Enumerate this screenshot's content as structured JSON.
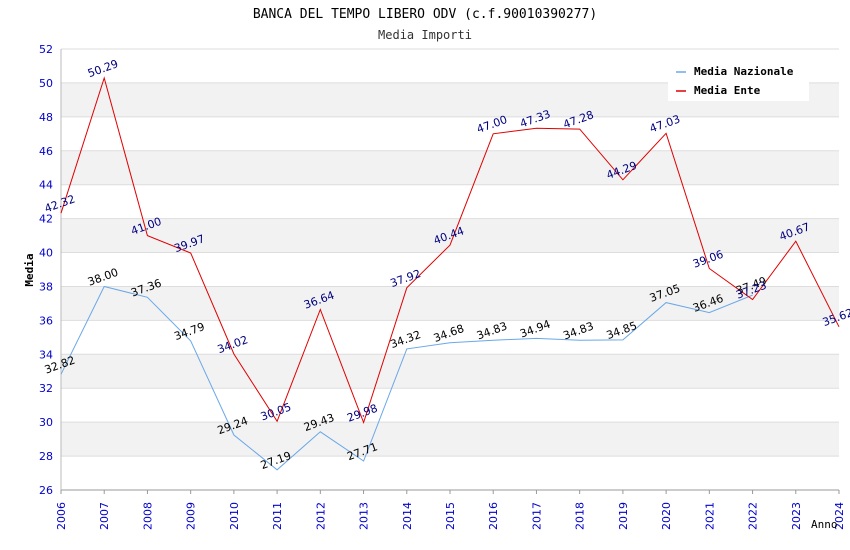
{
  "chart_data": {
    "type": "line",
    "title": "BANCA DEL TEMPO LIBERO ODV (c.f.90010390277)",
    "subtitle": "Media Importi",
    "xlabel": "Anno",
    "ylabel": "Media",
    "ylim": [
      26,
      52
    ],
    "ytick_step": 2,
    "grid": true,
    "legend_position": "top-right",
    "x": [
      "2006",
      "2007",
      "2008",
      "2009",
      "2010",
      "2011",
      "2012",
      "2013",
      "2014",
      "2015",
      "2016",
      "2017",
      "2018",
      "2019",
      "2020",
      "2021",
      "2022",
      "2023",
      "2024"
    ],
    "series": [
      {
        "name": "Media Nazionale",
        "color": "#6aa8e8",
        "label_color": "#000000",
        "values": [
          32.82,
          38.0,
          37.36,
          34.79,
          29.24,
          27.19,
          29.43,
          27.71,
          34.32,
          34.68,
          34.83,
          34.94,
          34.83,
          34.85,
          37.05,
          36.46,
          37.49,
          null,
          null
        ],
        "labels": [
          "32.82",
          "38.00",
          "37.36",
          "34.79",
          "29.24",
          "27.19",
          "29.43",
          "27.71",
          "34.32",
          "34.68",
          "34.83",
          "34.94",
          "34.83",
          "34.85",
          "37.05",
          "36.46",
          "37.49",
          null,
          null
        ]
      },
      {
        "name": "Media Ente",
        "color": "#e00000",
        "label_color": "#000080",
        "values": [
          42.32,
          50.29,
          41.0,
          39.97,
          34.02,
          30.05,
          36.64,
          29.98,
          37.92,
          40.44,
          47.0,
          47.33,
          47.28,
          44.29,
          47.03,
          39.06,
          37.23,
          40.67,
          35.62
        ],
        "labels": [
          "42.32",
          "50.29",
          "41.00",
          "39.97",
          "34.02",
          "30.05",
          "36.64",
          "29.98",
          "37.92",
          "40.44",
          "47.00",
          "47.33",
          "47.28",
          "44.29",
          "47.03",
          "39.06",
          "37.23",
          "40.67",
          "35.62"
        ]
      }
    ]
  }
}
